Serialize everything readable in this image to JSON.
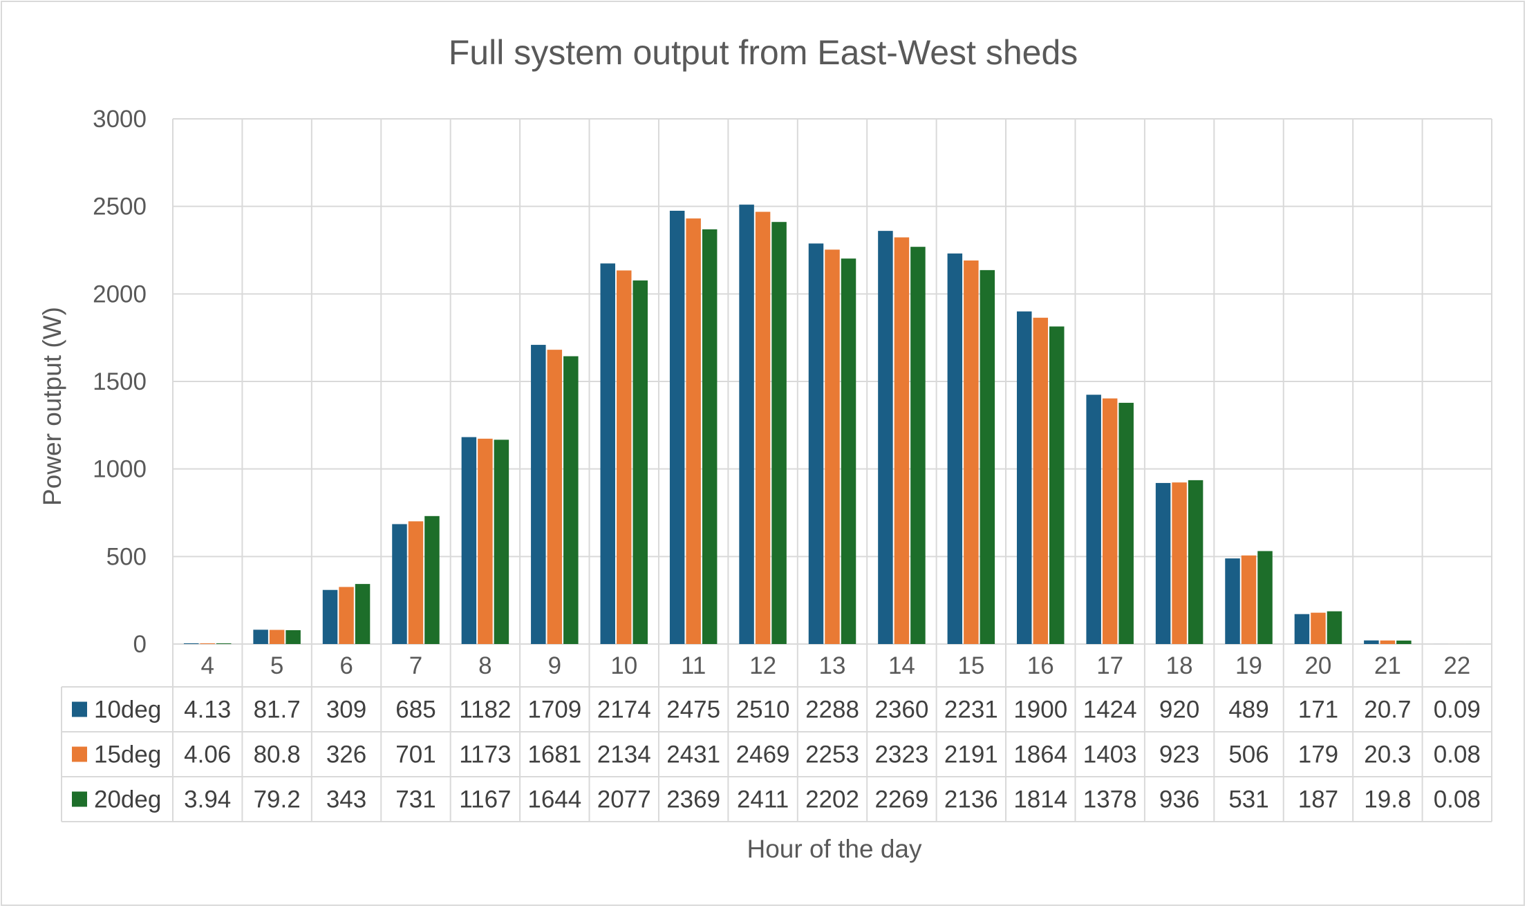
{
  "chart_data": {
    "type": "bar",
    "title": "Full system output from East-West sheds",
    "xlabel": "Hour of the day",
    "ylabel": "Power output (W)",
    "ylim": [
      0,
      3000
    ],
    "yticks": [
      0,
      500,
      1000,
      1500,
      2000,
      2500,
      3000
    ],
    "grid": true,
    "legend": "data-table",
    "categories": [
      "4",
      "5",
      "6",
      "7",
      "8",
      "9",
      "10",
      "11",
      "12",
      "13",
      "14",
      "15",
      "16",
      "17",
      "18",
      "19",
      "20",
      "21",
      "22"
    ],
    "series": [
      {
        "name": "10deg",
        "color": "#1a5e86",
        "values": [
          4.13,
          81.7,
          309,
          685,
          1182,
          1709,
          2174,
          2475,
          2510,
          2288,
          2360,
          2231,
          1900,
          1424,
          920,
          489,
          171,
          20.7,
          0.09
        ]
      },
      {
        "name": "15deg",
        "color": "#e97a34",
        "values": [
          4.06,
          80.8,
          326,
          701,
          1173,
          1681,
          2134,
          2431,
          2469,
          2253,
          2323,
          2191,
          1864,
          1403,
          923,
          506,
          179,
          20.3,
          0.08
        ]
      },
      {
        "name": "20deg",
        "color": "#1d6e2a",
        "values": [
          3.94,
          79.2,
          343,
          731,
          1167,
          1644,
          2077,
          2369,
          2411,
          2202,
          2269,
          2136,
          1814,
          1378,
          936,
          531,
          187,
          19.8,
          0.08
        ]
      }
    ]
  }
}
